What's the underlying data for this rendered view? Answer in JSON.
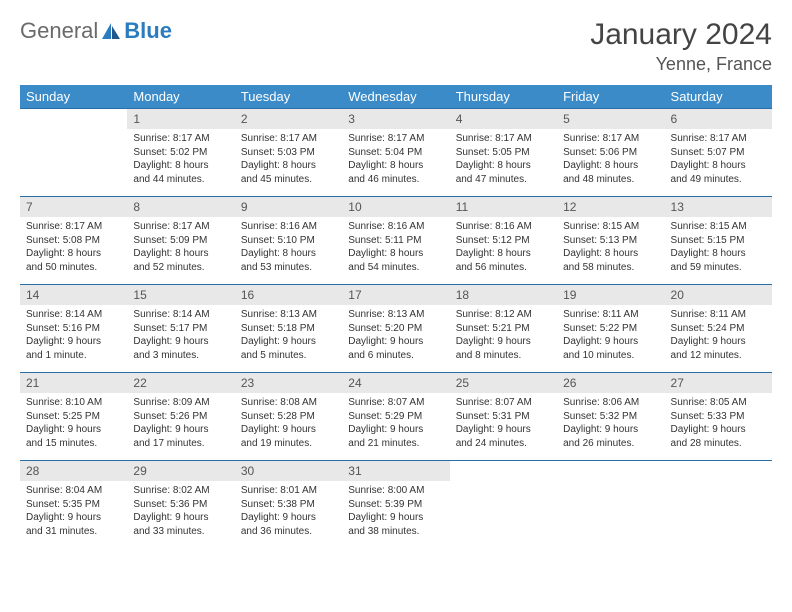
{
  "logo": {
    "general": "General",
    "blue": "Blue"
  },
  "title": "January 2024",
  "location": "Yenne, France",
  "colors": {
    "header_bg": "#3b8bc9",
    "header_text": "#ffffff",
    "daynum_bg": "#e8e8e8",
    "row_border": "#2a6ea5",
    "logo_accent": "#2b7bbf",
    "logo_grey": "#6a6a6a"
  },
  "weekdays": [
    "Sunday",
    "Monday",
    "Tuesday",
    "Wednesday",
    "Thursday",
    "Friday",
    "Saturday"
  ],
  "days": {
    "1": {
      "sunrise": "Sunrise: 8:17 AM",
      "sunset": "Sunset: 5:02 PM",
      "daylight1": "Daylight: 8 hours",
      "daylight2": "and 44 minutes."
    },
    "2": {
      "sunrise": "Sunrise: 8:17 AM",
      "sunset": "Sunset: 5:03 PM",
      "daylight1": "Daylight: 8 hours",
      "daylight2": "and 45 minutes."
    },
    "3": {
      "sunrise": "Sunrise: 8:17 AM",
      "sunset": "Sunset: 5:04 PM",
      "daylight1": "Daylight: 8 hours",
      "daylight2": "and 46 minutes."
    },
    "4": {
      "sunrise": "Sunrise: 8:17 AM",
      "sunset": "Sunset: 5:05 PM",
      "daylight1": "Daylight: 8 hours",
      "daylight2": "and 47 minutes."
    },
    "5": {
      "sunrise": "Sunrise: 8:17 AM",
      "sunset": "Sunset: 5:06 PM",
      "daylight1": "Daylight: 8 hours",
      "daylight2": "and 48 minutes."
    },
    "6": {
      "sunrise": "Sunrise: 8:17 AM",
      "sunset": "Sunset: 5:07 PM",
      "daylight1": "Daylight: 8 hours",
      "daylight2": "and 49 minutes."
    },
    "7": {
      "sunrise": "Sunrise: 8:17 AM",
      "sunset": "Sunset: 5:08 PM",
      "daylight1": "Daylight: 8 hours",
      "daylight2": "and 50 minutes."
    },
    "8": {
      "sunrise": "Sunrise: 8:17 AM",
      "sunset": "Sunset: 5:09 PM",
      "daylight1": "Daylight: 8 hours",
      "daylight2": "and 52 minutes."
    },
    "9": {
      "sunrise": "Sunrise: 8:16 AM",
      "sunset": "Sunset: 5:10 PM",
      "daylight1": "Daylight: 8 hours",
      "daylight2": "and 53 minutes."
    },
    "10": {
      "sunrise": "Sunrise: 8:16 AM",
      "sunset": "Sunset: 5:11 PM",
      "daylight1": "Daylight: 8 hours",
      "daylight2": "and 54 minutes."
    },
    "11": {
      "sunrise": "Sunrise: 8:16 AM",
      "sunset": "Sunset: 5:12 PM",
      "daylight1": "Daylight: 8 hours",
      "daylight2": "and 56 minutes."
    },
    "12": {
      "sunrise": "Sunrise: 8:15 AM",
      "sunset": "Sunset: 5:13 PM",
      "daylight1": "Daylight: 8 hours",
      "daylight2": "and 58 minutes."
    },
    "13": {
      "sunrise": "Sunrise: 8:15 AM",
      "sunset": "Sunset: 5:15 PM",
      "daylight1": "Daylight: 8 hours",
      "daylight2": "and 59 minutes."
    },
    "14": {
      "sunrise": "Sunrise: 8:14 AM",
      "sunset": "Sunset: 5:16 PM",
      "daylight1": "Daylight: 9 hours",
      "daylight2": "and 1 minute."
    },
    "15": {
      "sunrise": "Sunrise: 8:14 AM",
      "sunset": "Sunset: 5:17 PM",
      "daylight1": "Daylight: 9 hours",
      "daylight2": "and 3 minutes."
    },
    "16": {
      "sunrise": "Sunrise: 8:13 AM",
      "sunset": "Sunset: 5:18 PM",
      "daylight1": "Daylight: 9 hours",
      "daylight2": "and 5 minutes."
    },
    "17": {
      "sunrise": "Sunrise: 8:13 AM",
      "sunset": "Sunset: 5:20 PM",
      "daylight1": "Daylight: 9 hours",
      "daylight2": "and 6 minutes."
    },
    "18": {
      "sunrise": "Sunrise: 8:12 AM",
      "sunset": "Sunset: 5:21 PM",
      "daylight1": "Daylight: 9 hours",
      "daylight2": "and 8 minutes."
    },
    "19": {
      "sunrise": "Sunrise: 8:11 AM",
      "sunset": "Sunset: 5:22 PM",
      "daylight1": "Daylight: 9 hours",
      "daylight2": "and 10 minutes."
    },
    "20": {
      "sunrise": "Sunrise: 8:11 AM",
      "sunset": "Sunset: 5:24 PM",
      "daylight1": "Daylight: 9 hours",
      "daylight2": "and 12 minutes."
    },
    "21": {
      "sunrise": "Sunrise: 8:10 AM",
      "sunset": "Sunset: 5:25 PM",
      "daylight1": "Daylight: 9 hours",
      "daylight2": "and 15 minutes."
    },
    "22": {
      "sunrise": "Sunrise: 8:09 AM",
      "sunset": "Sunset: 5:26 PM",
      "daylight1": "Daylight: 9 hours",
      "daylight2": "and 17 minutes."
    },
    "23": {
      "sunrise": "Sunrise: 8:08 AM",
      "sunset": "Sunset: 5:28 PM",
      "daylight1": "Daylight: 9 hours",
      "daylight2": "and 19 minutes."
    },
    "24": {
      "sunrise": "Sunrise: 8:07 AM",
      "sunset": "Sunset: 5:29 PM",
      "daylight1": "Daylight: 9 hours",
      "daylight2": "and 21 minutes."
    },
    "25": {
      "sunrise": "Sunrise: 8:07 AM",
      "sunset": "Sunset: 5:31 PM",
      "daylight1": "Daylight: 9 hours",
      "daylight2": "and 24 minutes."
    },
    "26": {
      "sunrise": "Sunrise: 8:06 AM",
      "sunset": "Sunset: 5:32 PM",
      "daylight1": "Daylight: 9 hours",
      "daylight2": "and 26 minutes."
    },
    "27": {
      "sunrise": "Sunrise: 8:05 AM",
      "sunset": "Sunset: 5:33 PM",
      "daylight1": "Daylight: 9 hours",
      "daylight2": "and 28 minutes."
    },
    "28": {
      "sunrise": "Sunrise: 8:04 AM",
      "sunset": "Sunset: 5:35 PM",
      "daylight1": "Daylight: 9 hours",
      "daylight2": "and 31 minutes."
    },
    "29": {
      "sunrise": "Sunrise: 8:02 AM",
      "sunset": "Sunset: 5:36 PM",
      "daylight1": "Daylight: 9 hours",
      "daylight2": "and 33 minutes."
    },
    "30": {
      "sunrise": "Sunrise: 8:01 AM",
      "sunset": "Sunset: 5:38 PM",
      "daylight1": "Daylight: 9 hours",
      "daylight2": "and 36 minutes."
    },
    "31": {
      "sunrise": "Sunrise: 8:00 AM",
      "sunset": "Sunset: 5:39 PM",
      "daylight1": "Daylight: 9 hours",
      "daylight2": "and 38 minutes."
    }
  },
  "grid": [
    [
      null,
      1,
      2,
      3,
      4,
      5,
      6
    ],
    [
      7,
      8,
      9,
      10,
      11,
      12,
      13
    ],
    [
      14,
      15,
      16,
      17,
      18,
      19,
      20
    ],
    [
      21,
      22,
      23,
      24,
      25,
      26,
      27
    ],
    [
      28,
      29,
      30,
      31,
      null,
      null,
      null
    ]
  ]
}
